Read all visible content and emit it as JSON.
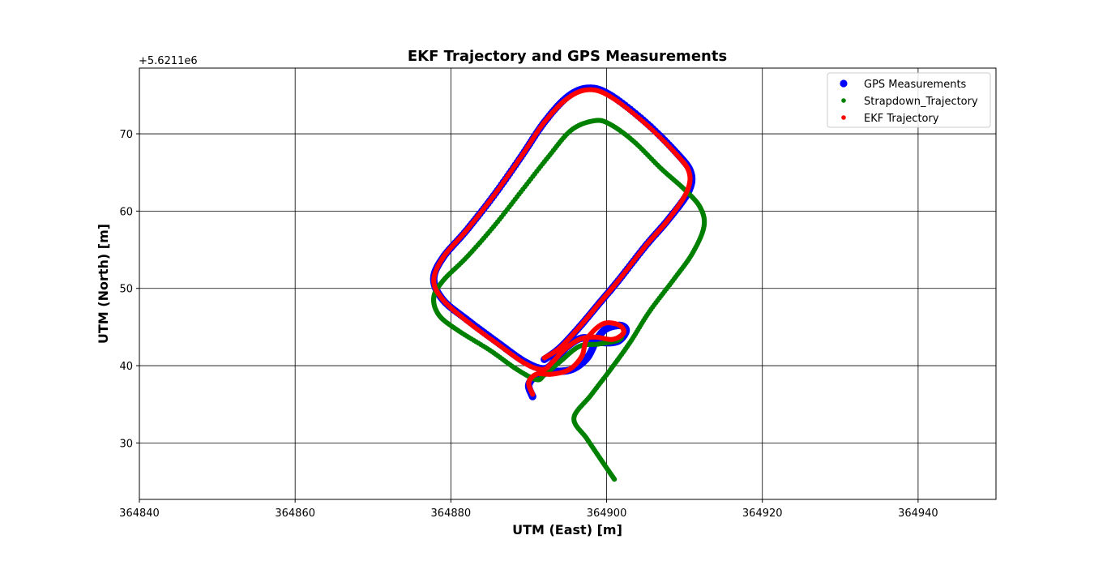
{
  "chart_data": {
    "type": "scatter",
    "title": "EKF Trajectory and GPS Measurements",
    "xlabel": "UTM (East) [m]",
    "ylabel": "UTM (North) [m]",
    "y_offset_label": "+5.6211e6",
    "xlim": [
      364840,
      364950
    ],
    "ylim": [
      22.7,
      78.5
    ],
    "x_ticks": [
      364840,
      364860,
      364880,
      364900,
      364920,
      364940
    ],
    "y_ticks": [
      30,
      40,
      50,
      60,
      70
    ],
    "grid": true,
    "legend_position": "top-right",
    "series": [
      {
        "name": "GPS Measurements",
        "color": "#0000ff",
        "marker_size": "large",
        "path": [
          [
            364890.5,
            36.0
          ],
          [
            364890.0,
            37.5
          ],
          [
            364891.0,
            38.7
          ],
          [
            364893.0,
            39.2
          ],
          [
            364895.5,
            39.5
          ],
          [
            364897.5,
            41.0
          ],
          [
            364898.8,
            43.5
          ],
          [
            364900.0,
            44.8
          ],
          [
            364901.8,
            45.2
          ],
          [
            364902.5,
            44.5
          ],
          [
            364901.5,
            43.2
          ],
          [
            364899.5,
            43.0
          ],
          [
            364897.0,
            43.6
          ],
          [
            364895.0,
            42.5
          ],
          [
            364893.5,
            40.8
          ],
          [
            364892.0,
            39.6
          ],
          [
            364889.5,
            40.5
          ],
          [
            364886.0,
            43.0
          ],
          [
            364882.0,
            46.0
          ],
          [
            364879.0,
            48.5
          ],
          [
            364877.8,
            51.2
          ],
          [
            364879.0,
            54.0
          ],
          [
            364882.0,
            57.5
          ],
          [
            364885.5,
            62.0
          ],
          [
            364889.0,
            67.0
          ],
          [
            364892.0,
            71.5
          ],
          [
            364895.0,
            74.8
          ],
          [
            364897.7,
            75.9
          ],
          [
            364900.5,
            75.0
          ],
          [
            364905.0,
            71.5
          ],
          [
            364909.0,
            67.5
          ],
          [
            364910.8,
            65.0
          ],
          [
            364910.5,
            62.5
          ],
          [
            364908.0,
            59.0
          ],
          [
            364905.0,
            55.5
          ],
          [
            364901.5,
            51.0
          ],
          [
            364899.0,
            48.0
          ],
          [
            364896.5,
            45.0
          ],
          [
            364894.0,
            42.3
          ],
          [
            364892.0,
            40.8
          ]
        ]
      },
      {
        "name": "Strapdown_Trajectory",
        "color": "#008000",
        "marker_size": "small",
        "path": [
          [
            364901.0,
            25.3
          ],
          [
            364899.5,
            27.5
          ],
          [
            364897.5,
            30.5
          ],
          [
            364895.8,
            33.2
          ],
          [
            364898.0,
            36.2
          ],
          [
            364900.5,
            39.5
          ],
          [
            364903.0,
            43.0
          ],
          [
            364905.5,
            47.0
          ],
          [
            364908.5,
            51.0
          ],
          [
            364911.0,
            54.5
          ],
          [
            364912.5,
            58.0
          ],
          [
            364912.0,
            60.5
          ],
          [
            364910.0,
            62.8
          ],
          [
            364907.0,
            65.5
          ],
          [
            364903.5,
            69.0
          ],
          [
            364900.5,
            71.2
          ],
          [
            364898.5,
            71.7
          ],
          [
            364895.5,
            70.5
          ],
          [
            364892.5,
            67.0
          ],
          [
            364889.0,
            62.5
          ],
          [
            364885.5,
            58.0
          ],
          [
            364882.0,
            54.0
          ],
          [
            364879.0,
            51.0
          ],
          [
            364877.8,
            48.8
          ],
          [
            364878.5,
            46.5
          ],
          [
            364881.0,
            44.5
          ],
          [
            364885.0,
            42.0
          ],
          [
            364888.5,
            39.5
          ],
          [
            364891.0,
            38.2
          ],
          [
            364892.0,
            38.8
          ],
          [
            364894.0,
            40.5
          ],
          [
            364896.5,
            42.5
          ],
          [
            364899.0,
            42.8
          ],
          [
            364901.5,
            43.3
          ],
          [
            364902.0,
            44.0
          ]
        ]
      },
      {
        "name": "EKF Trajectory",
        "color": "#ff0000",
        "marker_size": "small",
        "path": [
          [
            364890.5,
            36.3
          ],
          [
            364890.0,
            37.8
          ],
          [
            364891.0,
            38.9
          ],
          [
            364893.0,
            38.9
          ],
          [
            364895.2,
            39.5
          ],
          [
            364896.8,
            41.2
          ],
          [
            364897.5,
            43.5
          ],
          [
            364899.5,
            45.4
          ],
          [
            364901.5,
            45.3
          ],
          [
            364902.2,
            44.3
          ],
          [
            364900.8,
            43.4
          ],
          [
            364898.5,
            43.7
          ],
          [
            364896.5,
            43.4
          ],
          [
            364894.5,
            42.0
          ],
          [
            364893.0,
            40.4
          ],
          [
            364891.8,
            39.5
          ],
          [
            364889.5,
            40.3
          ],
          [
            364886.0,
            42.8
          ],
          [
            364882.0,
            45.8
          ],
          [
            364879.0,
            48.5
          ],
          [
            364877.8,
            51.0
          ],
          [
            364879.0,
            54.0
          ],
          [
            364882.0,
            57.5
          ],
          [
            364885.5,
            62.0
          ],
          [
            364889.0,
            67.0
          ],
          [
            364892.0,
            71.5
          ],
          [
            364895.0,
            74.6
          ],
          [
            364897.7,
            75.7
          ],
          [
            364900.5,
            74.8
          ],
          [
            364905.0,
            71.3
          ],
          [
            364909.0,
            67.3
          ],
          [
            364910.6,
            65.0
          ],
          [
            364910.3,
            62.5
          ],
          [
            364908.0,
            59.0
          ],
          [
            364905.0,
            55.5
          ],
          [
            364901.5,
            51.0
          ],
          [
            364899.0,
            48.0
          ],
          [
            364896.5,
            45.0
          ],
          [
            364894.0,
            42.3
          ],
          [
            364892.0,
            41.0
          ]
        ]
      }
    ]
  }
}
